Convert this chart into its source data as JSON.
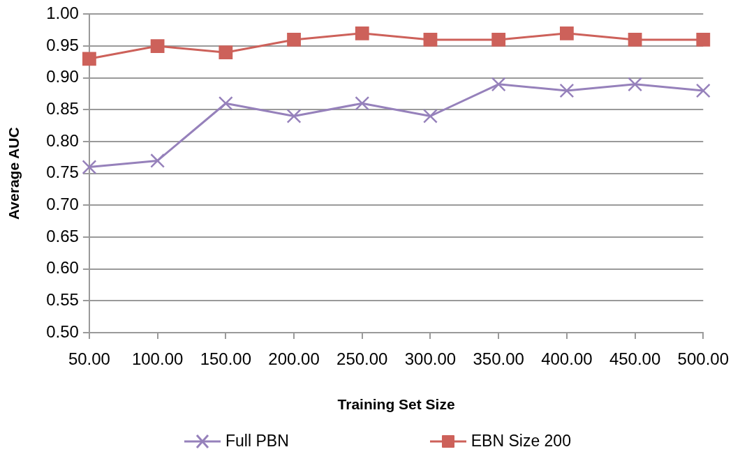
{
  "chart_data": {
    "type": "line",
    "xlabel": "Training Set Size",
    "ylabel": "Average AUC",
    "categories": [
      "50.00",
      "100.00",
      "150.00",
      "200.00",
      "250.00",
      "300.00",
      "350.00",
      "400.00",
      "450.00",
      "500.00"
    ],
    "ylim": [
      0.5,
      1.0
    ],
    "yticks": [
      {
        "value": 0.5,
        "label": "0.50"
      },
      {
        "value": 0.55,
        "label": "0.55"
      },
      {
        "value": 0.6,
        "label": "0.60"
      },
      {
        "value": 0.65,
        "label": "0.65"
      },
      {
        "value": 0.7,
        "label": "0.70"
      },
      {
        "value": 0.75,
        "label": "0.75"
      },
      {
        "value": 0.8,
        "label": "0.80"
      },
      {
        "value": 0.85,
        "label": "0.85"
      },
      {
        "value": 0.9,
        "label": "0.90"
      },
      {
        "value": 0.95,
        "label": "0.95"
      },
      {
        "value": 1.0,
        "label": "1.00"
      }
    ],
    "grid": "y",
    "legend": "bottom",
    "series": [
      {
        "name": "Full PBN",
        "color": "#9681bb",
        "marker": "cross",
        "values": [
          0.76,
          0.77,
          0.86,
          0.84,
          0.86,
          0.84,
          0.89,
          0.88,
          0.89,
          0.88
        ]
      },
      {
        "name": "EBN Size 200",
        "color": "#cd615a",
        "marker": "square",
        "values": [
          0.93,
          0.95,
          0.94,
          0.96,
          0.97,
          0.96,
          0.96,
          0.97,
          0.96,
          0.96
        ]
      }
    ]
  }
}
